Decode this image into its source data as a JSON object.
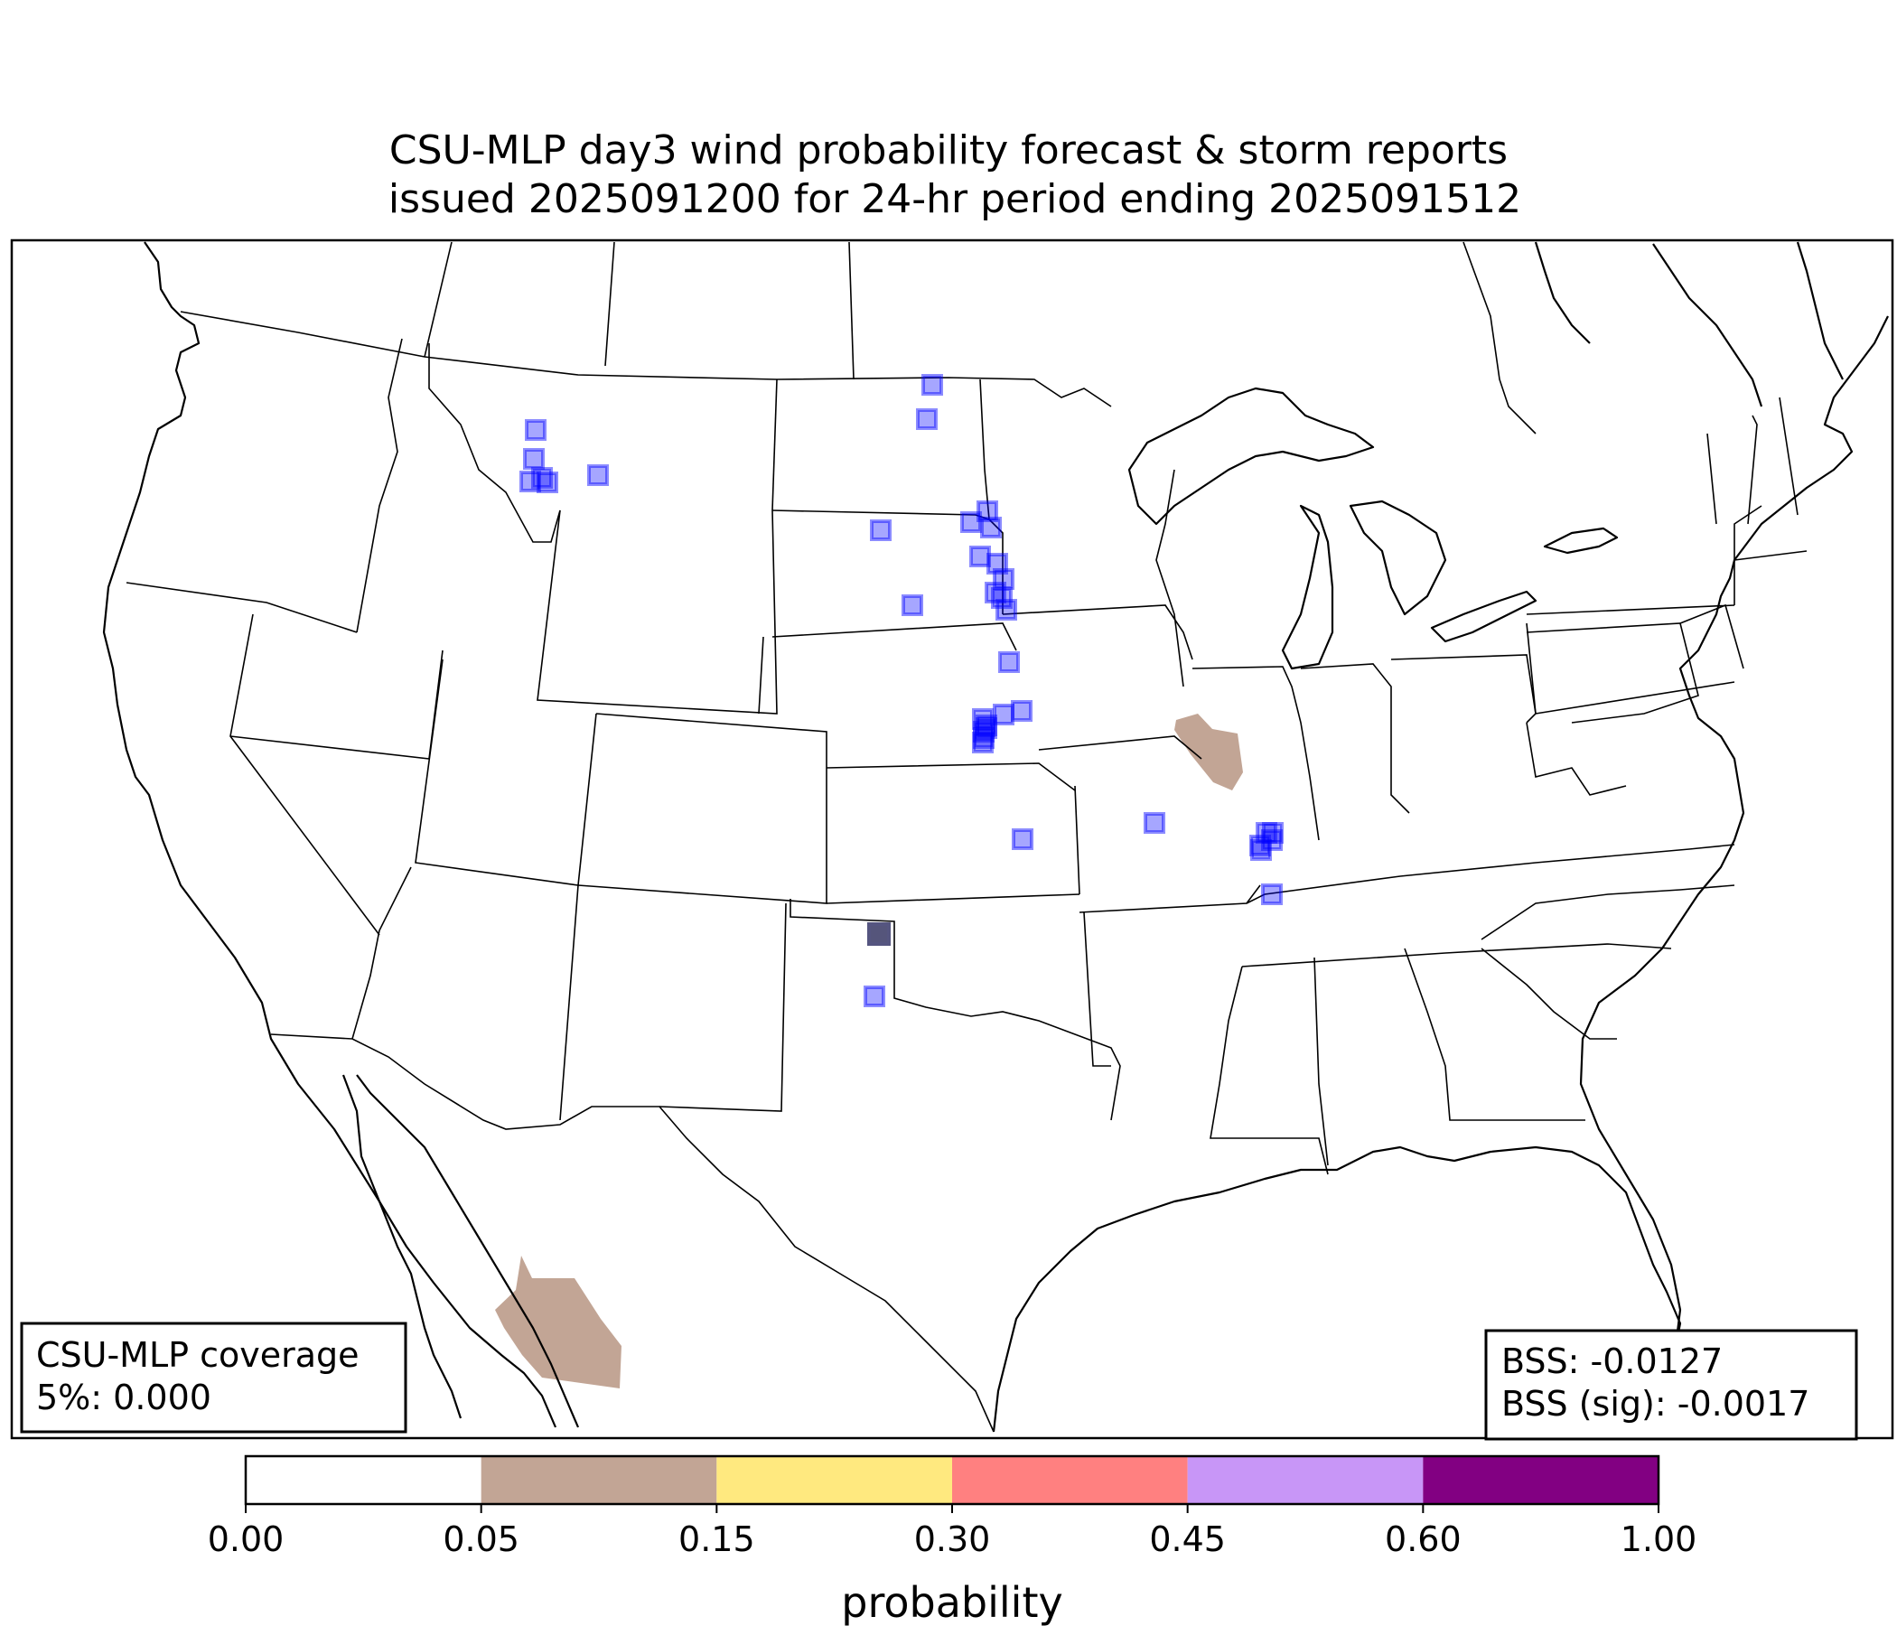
{
  "title": {
    "line1": "CSU-MLP day3 wind probability forecast & storm reports",
    "line2": " issued 2025091200 for 24-hr period ending 2025091512"
  },
  "coverage_box": {
    "line1": "CSU-MLP coverage",
    "line2": "5%: 0.000"
  },
  "bss_box": {
    "line1": "BSS: -0.0127",
    "line2": "BSS (sig): -0.0017"
  },
  "colorbar": {
    "label": "probability",
    "ticks": [
      "0.00",
      "0.05",
      "0.15",
      "0.30",
      "0.45",
      "0.60",
      "1.00"
    ],
    "colors": [
      "#ffffff",
      "#c2a595",
      "#ffe97f",
      "#ff8080",
      "#c896f7",
      "#820082"
    ]
  },
  "colors": {
    "report": "#0000ff",
    "report_sig": "#000000",
    "forecast_5pct": "#c2a595"
  }
}
